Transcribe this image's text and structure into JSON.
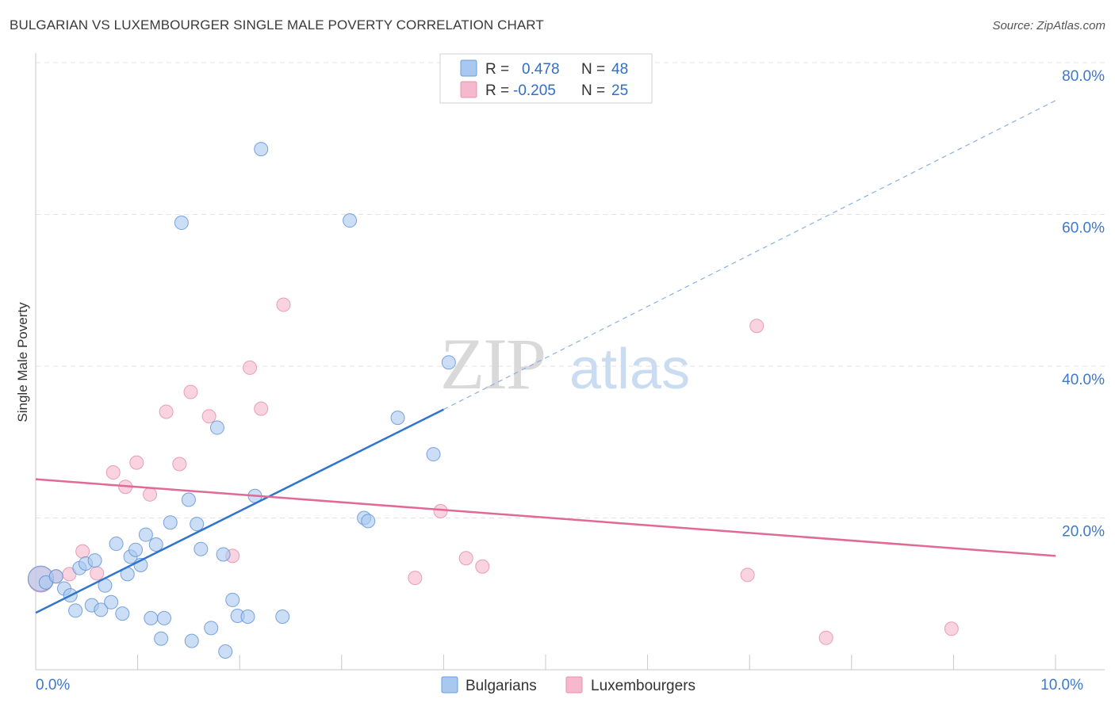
{
  "title": "BULGARIAN VS LUXEMBOURGER SINGLE MALE POVERTY CORRELATION CHART",
  "source": "Source: ZipAtlas.com",
  "watermark": {
    "zip": "ZIP",
    "atlas": "atlas"
  },
  "legend_box": [
    {
      "r_label": "R =",
      "r_value": "0.478",
      "n_label": "N =",
      "n_value": "48",
      "color": "#a8c8f0"
    },
    {
      "r_label": "R =",
      "r_value": "-0.205",
      "n_label": "N =",
      "n_value": "25",
      "color": "#f5b8cc"
    }
  ],
  "chart_data": {
    "type": "scatter",
    "title": "BULGARIAN VS LUXEMBOURGER SINGLE MALE POVERTY CORRELATION CHART",
    "xlabel": "",
    "ylabel": "Single Male Poverty",
    "xlim": [
      0,
      10
    ],
    "ylim": [
      0,
      80
    ],
    "x_ticks": [
      0,
      1,
      2,
      3,
      4,
      5,
      6,
      7,
      8,
      9,
      10
    ],
    "x_tick_labels": [
      {
        "x": 0,
        "label": "0.0%"
      },
      {
        "x": 10,
        "label": "10.0%"
      }
    ],
    "y_tick_labels": [
      {
        "y": 20,
        "label": "20.0%"
      },
      {
        "y": 40,
        "label": "40.0%"
      },
      {
        "y": 60,
        "label": "60.0%"
      },
      {
        "y": 80,
        "label": "80.0%"
      }
    ],
    "grid": true,
    "legend_position": "bottom-center",
    "series": [
      {
        "name": "Bulgarians",
        "color": "#a8c8f0",
        "stroke": "#5b8fd6",
        "trend_color": "#2f74d0",
        "trend": {
          "x0": 0,
          "y0": 7.5,
          "x1": 4,
          "y1": 34.3,
          "dash_x1": 10,
          "dash_y1": 75
        },
        "points": [
          {
            "x": 0.05,
            "y": 12.0,
            "big": true
          },
          {
            "x": 0.1,
            "y": 11.5
          },
          {
            "x": 0.2,
            "y": 12.3
          },
          {
            "x": 0.28,
            "y": 10.7
          },
          {
            "x": 0.34,
            "y": 9.8
          },
          {
            "x": 0.39,
            "y": 7.8
          },
          {
            "x": 0.43,
            "y": 13.4
          },
          {
            "x": 0.49,
            "y": 14.0
          },
          {
            "x": 0.55,
            "y": 8.5
          },
          {
            "x": 0.58,
            "y": 14.4
          },
          {
            "x": 0.64,
            "y": 7.9
          },
          {
            "x": 0.68,
            "y": 11.1
          },
          {
            "x": 0.74,
            "y": 8.9
          },
          {
            "x": 0.79,
            "y": 16.6
          },
          {
            "x": 0.85,
            "y": 7.4
          },
          {
            "x": 0.9,
            "y": 12.6
          },
          {
            "x": 0.93,
            "y": 14.9
          },
          {
            "x": 0.98,
            "y": 15.8
          },
          {
            "x": 1.03,
            "y": 13.8
          },
          {
            "x": 1.08,
            "y": 17.8
          },
          {
            "x": 1.13,
            "y": 6.8
          },
          {
            "x": 1.18,
            "y": 16.5
          },
          {
            "x": 1.23,
            "y": 4.1
          },
          {
            "x": 1.26,
            "y": 6.8
          },
          {
            "x": 1.32,
            "y": 19.4
          },
          {
            "x": 1.43,
            "y": 58.9
          },
          {
            "x": 1.5,
            "y": 22.4
          },
          {
            "x": 1.53,
            "y": 3.8
          },
          {
            "x": 1.58,
            "y": 19.2
          },
          {
            "x": 1.62,
            "y": 15.9
          },
          {
            "x": 1.72,
            "y": 5.5
          },
          {
            "x": 1.78,
            "y": 31.9
          },
          {
            "x": 1.84,
            "y": 15.2
          },
          {
            "x": 1.86,
            "y": 2.4
          },
          {
            "x": 1.93,
            "y": 9.2
          },
          {
            "x": 1.98,
            "y": 7.1
          },
          {
            "x": 2.08,
            "y": 7.0
          },
          {
            "x": 2.15,
            "y": 22.9
          },
          {
            "x": 2.21,
            "y": 68.6
          },
          {
            "x": 2.42,
            "y": 7.0
          },
          {
            "x": 3.08,
            "y": 59.2
          },
          {
            "x": 3.22,
            "y": 20.0
          },
          {
            "x": 3.26,
            "y": 19.6
          },
          {
            "x": 3.55,
            "y": 33.2
          },
          {
            "x": 3.9,
            "y": 28.4
          },
          {
            "x": 4.05,
            "y": 40.5
          }
        ]
      },
      {
        "name": "Luxembourgers",
        "color": "#f5b8cc",
        "stroke": "#e48aa8",
        "trend_color": "#e06a95",
        "trend": {
          "x0": 0,
          "y0": 25.1,
          "x1": 10,
          "y1": 15.0
        },
        "points": [
          {
            "x": 0.05,
            "y": 11.9,
            "big": true
          },
          {
            "x": 0.2,
            "y": 12.3
          },
          {
            "x": 0.33,
            "y": 12.6
          },
          {
            "x": 0.46,
            "y": 15.6
          },
          {
            "x": 0.6,
            "y": 12.7
          },
          {
            "x": 0.76,
            "y": 26.0
          },
          {
            "x": 0.88,
            "y": 24.1
          },
          {
            "x": 0.99,
            "y": 27.3
          },
          {
            "x": 1.12,
            "y": 23.1
          },
          {
            "x": 1.28,
            "y": 34.0
          },
          {
            "x": 1.41,
            "y": 27.1
          },
          {
            "x": 1.52,
            "y": 36.6
          },
          {
            "x": 1.7,
            "y": 33.4
          },
          {
            "x": 1.93,
            "y": 15.0
          },
          {
            "x": 2.1,
            "y": 39.8
          },
          {
            "x": 2.21,
            "y": 34.4
          },
          {
            "x": 2.43,
            "y": 48.1
          },
          {
            "x": 3.72,
            "y": 12.1
          },
          {
            "x": 3.97,
            "y": 20.9
          },
          {
            "x": 4.22,
            "y": 14.7
          },
          {
            "x": 4.38,
            "y": 13.6
          },
          {
            "x": 6.98,
            "y": 12.5
          },
          {
            "x": 7.07,
            "y": 45.3
          },
          {
            "x": 7.75,
            "y": 4.2
          },
          {
            "x": 8.98,
            "y": 5.4
          }
        ]
      }
    ]
  }
}
